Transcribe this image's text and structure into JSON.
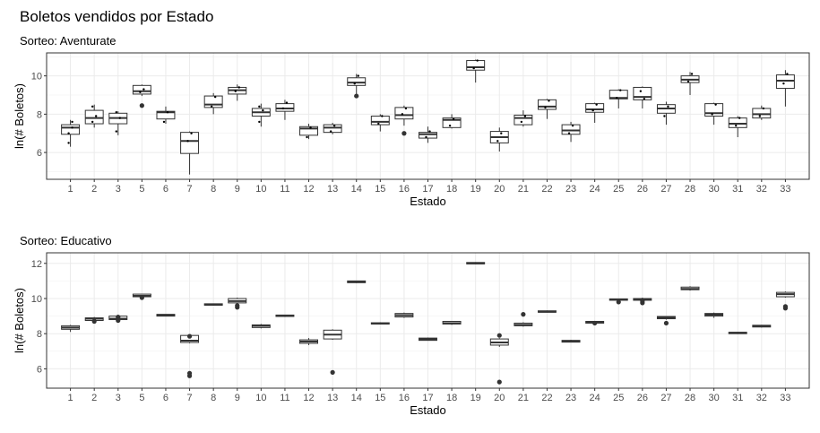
{
  "title": "Boletos vendidos por Estado",
  "chart_data": [
    {
      "type": "boxplot",
      "subtitle": "Sorteo: Aventurate",
      "xlabel": "Estado",
      "ylabel": "ln(# Boletos)",
      "ylim": [
        4.6,
        11.2
      ],
      "yticks": [
        6,
        8,
        10
      ],
      "grid": true,
      "categories": [
        "1",
        "2",
        "3",
        "5",
        "6",
        "7",
        "8",
        "9",
        "10",
        "11",
        "12",
        "13",
        "14",
        "15",
        "16",
        "17",
        "18",
        "19",
        "20",
        "21",
        "22",
        "23",
        "24",
        "25",
        "26",
        "27",
        "28",
        "30",
        "31",
        "32",
        "33"
      ],
      "boxes": [
        {
          "q1": 6.95,
          "med": 7.3,
          "q3": 7.45,
          "wlo": 6.3,
          "whi": 7.7,
          "out": [],
          "pts": [
            7.0,
            7.3,
            6.5,
            7.6
          ]
        },
        {
          "q1": 7.5,
          "med": 7.8,
          "q3": 8.2,
          "wlo": 7.3,
          "whi": 8.5,
          "out": [],
          "pts": [
            7.6,
            7.9,
            8.4
          ]
        },
        {
          "q1": 7.5,
          "med": 7.8,
          "q3": 8.05,
          "wlo": 6.9,
          "whi": 8.15,
          "out": [],
          "pts": [
            7.1,
            7.8,
            8.1
          ]
        },
        {
          "q1": 9.05,
          "med": 9.2,
          "q3": 9.5,
          "wlo": 8.95,
          "whi": 9.55,
          "out": [
            8.45
          ],
          "pts": [
            9.15,
            9.3
          ]
        },
        {
          "q1": 7.75,
          "med": 8.1,
          "q3": 8.15,
          "wlo": 7.5,
          "whi": 8.4,
          "out": [],
          "pts": [
            7.6,
            8.1
          ]
        },
        {
          "q1": 5.95,
          "med": 6.6,
          "q3": 7.05,
          "wlo": 4.85,
          "whi": 7.1,
          "out": [],
          "pts": [
            6.6,
            7.0
          ]
        },
        {
          "q1": 8.35,
          "med": 8.5,
          "q3": 8.95,
          "wlo": 8.0,
          "whi": 9.1,
          "out": [],
          "pts": [
            8.4,
            8.9
          ]
        },
        {
          "q1": 9.05,
          "med": 9.25,
          "q3": 9.4,
          "wlo": 8.7,
          "whi": 9.55,
          "out": [],
          "pts": [
            9.2,
            9.4
          ]
        },
        {
          "q1": 7.9,
          "med": 8.1,
          "q3": 8.3,
          "wlo": 7.35,
          "whi": 8.55,
          "out": [],
          "pts": [
            7.6,
            8.2,
            8.4
          ]
        },
        {
          "q1": 8.15,
          "med": 8.3,
          "q3": 8.55,
          "wlo": 7.7,
          "whi": 8.75,
          "out": [],
          "pts": [
            8.3,
            8.6
          ]
        },
        {
          "q1": 6.9,
          "med": 7.25,
          "q3": 7.35,
          "wlo": 6.7,
          "whi": 7.5,
          "out": [],
          "pts": [
            6.8,
            7.3
          ]
        },
        {
          "q1": 7.05,
          "med": 7.3,
          "q3": 7.45,
          "wlo": 6.95,
          "whi": 7.55,
          "out": [],
          "pts": [
            7.1,
            7.4
          ]
        },
        {
          "q1": 9.5,
          "med": 9.65,
          "q3": 9.9,
          "wlo": 9.0,
          "whi": 10.1,
          "out": [
            8.95
          ],
          "pts": [
            9.6,
            10.0
          ]
        },
        {
          "q1": 7.45,
          "med": 7.6,
          "q3": 7.9,
          "wlo": 7.1,
          "whi": 8.0,
          "out": [],
          "pts": [
            7.5,
            7.9
          ]
        },
        {
          "q1": 7.75,
          "med": 7.95,
          "q3": 8.35,
          "wlo": 7.4,
          "whi": 8.45,
          "out": [
            7.0
          ],
          "pts": [
            8.0,
            8.3
          ]
        },
        {
          "q1": 6.75,
          "med": 6.95,
          "q3": 7.05,
          "wlo": 6.5,
          "whi": 7.35,
          "out": [],
          "pts": [
            6.8,
            7.1
          ]
        },
        {
          "q1": 7.3,
          "med": 7.7,
          "q3": 7.8,
          "wlo": 7.25,
          "whi": 8.0,
          "out": [],
          "pts": [
            7.4,
            7.75
          ]
        },
        {
          "q1": 10.3,
          "med": 10.45,
          "q3": 10.8,
          "wlo": 9.65,
          "whi": 10.85,
          "out": [],
          "pts": [
            10.4,
            10.8
          ]
        },
        {
          "q1": 6.5,
          "med": 6.8,
          "q3": 7.1,
          "wlo": 6.05,
          "whi": 7.3,
          "out": [],
          "pts": [
            6.6,
            7.0
          ]
        },
        {
          "q1": 7.45,
          "med": 7.8,
          "q3": 7.95,
          "wlo": 7.35,
          "whi": 8.2,
          "out": [],
          "pts": [
            7.6,
            7.9
          ]
        },
        {
          "q1": 8.25,
          "med": 8.4,
          "q3": 8.75,
          "wlo": 7.75,
          "whi": 8.8,
          "out": [],
          "pts": [
            8.35,
            8.7
          ]
        },
        {
          "q1": 6.95,
          "med": 7.15,
          "q3": 7.45,
          "wlo": 6.55,
          "whi": 7.6,
          "out": [],
          "pts": [
            7.0,
            7.4
          ]
        },
        {
          "q1": 8.1,
          "med": 8.25,
          "q3": 8.55,
          "wlo": 7.55,
          "whi": 8.6,
          "out": [],
          "pts": [
            8.2,
            8.5
          ]
        },
        {
          "q1": 8.8,
          "med": 8.85,
          "q3": 9.25,
          "wlo": 8.3,
          "whi": 9.3,
          "out": [],
          "pts": [
            8.85,
            9.25
          ]
        },
        {
          "q1": 8.75,
          "med": 8.9,
          "q3": 9.4,
          "wlo": 8.3,
          "whi": 9.45,
          "out": [],
          "pts": [
            9.2,
            8.8
          ]
        },
        {
          "q1": 8.05,
          "med": 8.3,
          "q3": 8.5,
          "wlo": 7.45,
          "whi": 8.65,
          "out": [],
          "pts": [
            7.9,
            8.4
          ]
        },
        {
          "q1": 9.65,
          "med": 9.8,
          "q3": 10.0,
          "wlo": 9.0,
          "whi": 10.2,
          "out": [],
          "pts": [
            9.7,
            10.1
          ]
        },
        {
          "q1": 7.9,
          "med": 8.05,
          "q3": 8.55,
          "wlo": 7.45,
          "whi": 8.6,
          "out": [],
          "pts": [
            8.0,
            8.5
          ]
        },
        {
          "q1": 7.3,
          "med": 7.5,
          "q3": 7.8,
          "wlo": 6.8,
          "whi": 7.9,
          "out": [],
          "pts": [
            7.4,
            7.8
          ]
        },
        {
          "q1": 7.8,
          "med": 8.0,
          "q3": 8.3,
          "wlo": 7.7,
          "whi": 8.45,
          "out": [],
          "pts": [
            7.9,
            8.3
          ]
        },
        {
          "q1": 9.35,
          "med": 9.75,
          "q3": 10.05,
          "wlo": 8.4,
          "whi": 10.3,
          "out": [],
          "pts": [
            9.6,
            10.1
          ]
        }
      ]
    },
    {
      "type": "boxplot",
      "subtitle": "Sorteo: Educativo",
      "xlabel": "Estado",
      "ylabel": "ln(# Boletos)",
      "ylim": [
        4.9,
        12.6
      ],
      "yticks": [
        6,
        8,
        10,
        12
      ],
      "grid": true,
      "categories": [
        "1",
        "2",
        "3",
        "5",
        "6",
        "7",
        "8",
        "9",
        "10",
        "11",
        "12",
        "13",
        "14",
        "15",
        "16",
        "17",
        "18",
        "19",
        "20",
        "21",
        "22",
        "23",
        "24",
        "25",
        "26",
        "27",
        "28",
        "30",
        "31",
        "32",
        "33"
      ],
      "boxes": [
        {
          "q1": 8.25,
          "med": 8.35,
          "q3": 8.45,
          "wlo": 8.1,
          "whi": 8.5,
          "out": [],
          "pts": []
        },
        {
          "q1": 8.75,
          "med": 8.85,
          "q3": 8.9,
          "wlo": 8.65,
          "whi": 8.95,
          "out": [
            8.7
          ],
          "pts": []
        },
        {
          "q1": 8.8,
          "med": 8.85,
          "q3": 9.0,
          "wlo": 8.75,
          "whi": 9.0,
          "out": [
            8.75,
            8.95
          ],
          "pts": []
        },
        {
          "q1": 10.1,
          "med": 10.15,
          "q3": 10.25,
          "wlo": 10.0,
          "whi": 10.25,
          "out": [
            10.05
          ],
          "pts": []
        },
        {
          "q1": 9.0,
          "med": 9.05,
          "q3": 9.1,
          "wlo": 9.0,
          "whi": 9.1,
          "out": [],
          "pts": []
        },
        {
          "q1": 7.5,
          "med": 7.6,
          "q3": 7.9,
          "wlo": 7.45,
          "whi": 7.95,
          "out": [
            5.75,
            5.6,
            7.85
          ],
          "pts": []
        },
        {
          "q1": 9.62,
          "med": 9.65,
          "q3": 9.7,
          "wlo": 9.6,
          "whi": 9.72,
          "out": [],
          "pts": []
        },
        {
          "q1": 9.75,
          "med": 9.85,
          "q3": 10.0,
          "wlo": 9.7,
          "whi": 10.05,
          "out": [
            9.5,
            9.6
          ],
          "pts": []
        },
        {
          "q1": 8.35,
          "med": 8.45,
          "q3": 8.5,
          "wlo": 8.3,
          "whi": 8.55,
          "out": [],
          "pts": []
        },
        {
          "q1": 8.98,
          "med": 9.02,
          "q3": 9.06,
          "wlo": 8.95,
          "whi": 9.08,
          "out": [],
          "pts": []
        },
        {
          "q1": 7.45,
          "med": 7.55,
          "q3": 7.65,
          "wlo": 7.35,
          "whi": 7.75,
          "out": [],
          "pts": []
        },
        {
          "q1": 7.7,
          "med": 7.95,
          "q3": 8.2,
          "wlo": 7.65,
          "whi": 8.25,
          "out": [
            5.8
          ],
          "pts": []
        },
        {
          "q1": 10.9,
          "med": 10.95,
          "q3": 11.0,
          "wlo": 10.88,
          "whi": 11.02,
          "out": [],
          "pts": []
        },
        {
          "q1": 8.55,
          "med": 8.58,
          "q3": 8.62,
          "wlo": 8.52,
          "whi": 8.65,
          "out": [],
          "pts": []
        },
        {
          "q1": 8.95,
          "med": 9.05,
          "q3": 9.15,
          "wlo": 8.9,
          "whi": 9.2,
          "out": [],
          "pts": []
        },
        {
          "q1": 7.62,
          "med": 7.68,
          "q3": 7.75,
          "wlo": 7.6,
          "whi": 7.78,
          "out": [],
          "pts": []
        },
        {
          "q1": 8.55,
          "med": 8.6,
          "q3": 8.7,
          "wlo": 8.5,
          "whi": 8.72,
          "out": [],
          "pts": []
        },
        {
          "q1": 11.97,
          "med": 12.0,
          "q3": 12.05,
          "wlo": 11.95,
          "whi": 12.07,
          "out": [],
          "pts": []
        },
        {
          "q1": 7.35,
          "med": 7.5,
          "q3": 7.7,
          "wlo": 7.25,
          "whi": 7.75,
          "out": [
            5.25,
            7.9
          ],
          "pts": []
        },
        {
          "q1": 8.45,
          "med": 8.5,
          "q3": 8.6,
          "wlo": 8.4,
          "whi": 8.65,
          "out": [
            9.1
          ],
          "pts": []
        },
        {
          "q1": 9.22,
          "med": 9.25,
          "q3": 9.3,
          "wlo": 9.2,
          "whi": 9.32,
          "out": [],
          "pts": []
        },
        {
          "q1": 7.52,
          "med": 7.58,
          "q3": 7.62,
          "wlo": 7.5,
          "whi": 7.65,
          "out": [],
          "pts": []
        },
        {
          "q1": 8.6,
          "med": 8.65,
          "q3": 8.7,
          "wlo": 8.55,
          "whi": 8.72,
          "out": [
            8.6
          ],
          "pts": []
        },
        {
          "q1": 9.9,
          "med": 9.95,
          "q3": 9.98,
          "wlo": 9.85,
          "whi": 10.0,
          "out": [
            9.8
          ],
          "pts": []
        },
        {
          "q1": 9.9,
          "med": 9.95,
          "q3": 10.0,
          "wlo": 9.85,
          "whi": 10.05,
          "out": [
            9.75,
            9.85
          ],
          "pts": []
        },
        {
          "q1": 8.85,
          "med": 8.9,
          "q3": 8.98,
          "wlo": 8.8,
          "whi": 9.0,
          "out": [
            8.6
          ],
          "pts": []
        },
        {
          "q1": 10.5,
          "med": 10.55,
          "q3": 10.65,
          "wlo": 10.45,
          "whi": 10.7,
          "out": [],
          "pts": []
        },
        {
          "q1": 9.0,
          "med": 9.08,
          "q3": 9.15,
          "wlo": 8.9,
          "whi": 9.2,
          "out": [],
          "pts": []
        },
        {
          "q1": 8.0,
          "med": 8.05,
          "q3": 8.08,
          "wlo": 7.98,
          "whi": 8.1,
          "out": [],
          "pts": []
        },
        {
          "q1": 8.38,
          "med": 8.42,
          "q3": 8.48,
          "wlo": 8.35,
          "whi": 8.5,
          "out": [],
          "pts": []
        },
        {
          "q1": 10.1,
          "med": 10.25,
          "q3": 10.35,
          "wlo": 10.05,
          "whi": 10.4,
          "out": [
            9.45,
            9.55
          ],
          "pts": []
        }
      ]
    }
  ]
}
